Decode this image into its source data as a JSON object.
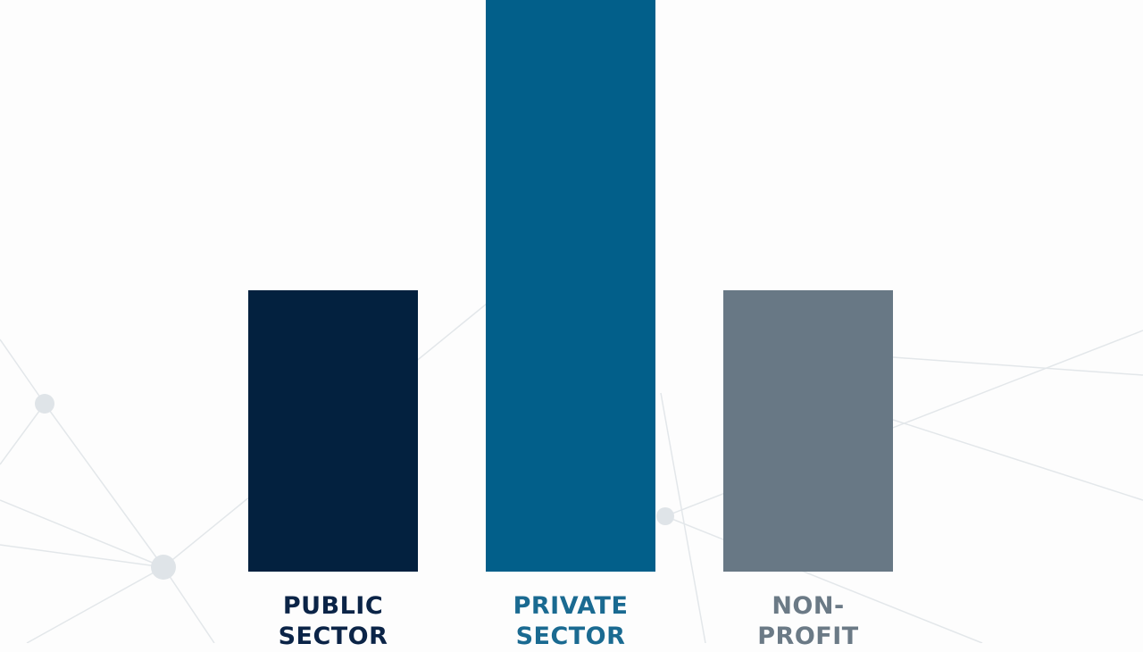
{
  "chart_data": {
    "type": "bar",
    "categories": [
      "PUBLIC SECTOR",
      "PRIVATE SECTOR",
      "NON-PROFIT"
    ],
    "values": [
      315,
      640,
      315
    ],
    "colors": [
      "#03213f",
      "#025f8a",
      "#687885"
    ],
    "label_colors": [
      "#0b2447",
      "#1a6a91",
      "#6b7a86"
    ],
    "ylim": [
      0,
      640
    ]
  }
}
